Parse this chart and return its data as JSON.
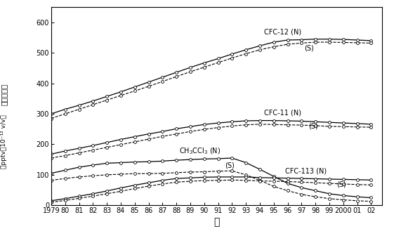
{
  "years": [
    1979,
    1980,
    1981,
    1982,
    1983,
    1984,
    1985,
    1986,
    1987,
    1988,
    1989,
    1990,
    1991,
    1992,
    1993,
    1994,
    1995,
    1996,
    1997,
    1998,
    1999,
    2000,
    2001,
    2002
  ],
  "CFC12_N": [
    300,
    315,
    328,
    342,
    357,
    372,
    388,
    404,
    420,
    436,
    452,
    467,
    481,
    496,
    510,
    523,
    535,
    542,
    543,
    545,
    545,
    544,
    542,
    540
  ],
  "CFC12_S": [
    285,
    300,
    315,
    330,
    345,
    360,
    375,
    390,
    406,
    422,
    438,
    453,
    468,
    483,
    497,
    510,
    520,
    528,
    532,
    535,
    535,
    534,
    533,
    532
  ],
  "CFC11_N": [
    168,
    178,
    187,
    196,
    206,
    216,
    225,
    234,
    242,
    251,
    258,
    265,
    270,
    274,
    277,
    278,
    278,
    277,
    276,
    274,
    272,
    270,
    268,
    266
  ],
  "CFC11_S": [
    155,
    163,
    172,
    181,
    190,
    199,
    208,
    217,
    226,
    234,
    242,
    249,
    255,
    260,
    264,
    266,
    265,
    264,
    263,
    261,
    259,
    258,
    257,
    256
  ],
  "CH3CCl3_N": [
    105,
    115,
    125,
    132,
    138,
    140,
    142,
    143,
    145,
    148,
    150,
    152,
    153,
    155,
    140,
    118,
    95,
    72,
    58,
    48,
    38,
    32,
    28,
    25
  ],
  "CH3CCl3_S": [
    82,
    88,
    93,
    97,
    100,
    102,
    104,
    104,
    105,
    107,
    109,
    110,
    112,
    113,
    100,
    82,
    62,
    48,
    36,
    28,
    22,
    18,
    15,
    13
  ],
  "CFC113_N": [
    15,
    22,
    30,
    38,
    47,
    57,
    66,
    74,
    82,
    88,
    90,
    92,
    93,
    93,
    93,
    91,
    90,
    89,
    88,
    87,
    86,
    85,
    84,
    83
  ],
  "CFC113_S": [
    10,
    16,
    23,
    30,
    38,
    46,
    55,
    63,
    70,
    76,
    79,
    81,
    82,
    83,
    82,
    80,
    79,
    78,
    76,
    74,
    72,
    70,
    68,
    67
  ],
  "ylim": [
    0,
    650
  ],
  "yticks": [
    0,
    100,
    200,
    300,
    400,
    500,
    600
  ],
  "xtick_labels": [
    "1979",
    "80",
    "81",
    "82",
    "83",
    "84",
    "85",
    "86",
    "87",
    "88",
    "89",
    "90",
    "91",
    "92",
    "93",
    "94",
    "95",
    "96",
    "97",
    "98",
    "99",
    "2000",
    "01",
    "02"
  ],
  "label_CFC12_N": "CFC-12 (N)",
  "label_CFC12_S": "(S)",
  "label_CFC11_N": "CFC-11 (N)",
  "label_CFC11_S": "(S)",
  "label_CH3CCl3_N": "CH$_3$CCl$_3$ (N)",
  "label_CH3CCl3_S": "(S)",
  "label_CFC113_N": "CFC-113 (N)",
  "label_CFC113_S": "(S)",
  "xlabel_ja": "年",
  "ylabel_line1": "大気中濃度",
  "ylabel_line2": "（pptv＝10⁻¹² v/v）"
}
